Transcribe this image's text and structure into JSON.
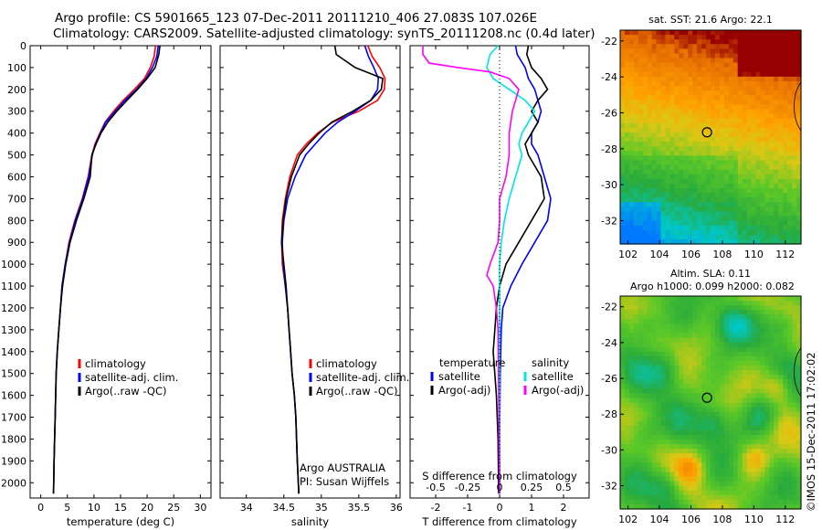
{
  "title_line1": "Argo profile: CS 5901665_123 07-Dec-2011 20111210_406 27.083S 107.026E",
  "title_line2": "Climatology: CARS2009. Satellite-adjusted climatology: synTS_20111208.nc (0.4d later)",
  "stamp": "©IMOS 15-Dec-2011 17:02:02",
  "colors": {
    "climatology": "#ff0000",
    "satellite": "#0000ff",
    "argo": "#000000",
    "cyan": "#00e5e5",
    "magenta": "#ff00ff"
  },
  "chart_data": [
    {
      "type": "line",
      "xlabel": "temperature (deg C)",
      "xlim": [
        -2,
        32
      ],
      "ylim": [
        2070,
        0
      ],
      "xticks": [
        0,
        5,
        10,
        15,
        20,
        25,
        30
      ],
      "yticks": [
        0,
        100,
        200,
        300,
        400,
        500,
        600,
        700,
        800,
        900,
        1000,
        1100,
        1200,
        1300,
        1400,
        1500,
        1600,
        1700,
        1800,
        1900,
        2000
      ],
      "legend": [
        "climatology",
        "satellite-adj. clim.",
        "Argo(..raw -QC)"
      ],
      "series": [
        {
          "name": "climatology",
          "color": "#ff0000",
          "x": [
            21.6,
            21.3,
            20.6,
            19.5,
            17.6,
            15.5,
            13.7,
            12.1,
            11.1,
            10.2,
            9.6,
            8.9,
            7.8,
            6.4,
            5.3,
            4.6,
            4.0,
            3.7,
            3.4,
            3.1,
            2.9,
            2.7,
            2.5,
            2.4
          ],
          "y": [
            0,
            50,
            100,
            150,
            200,
            250,
            300,
            350,
            400,
            450,
            500,
            600,
            700,
            800,
            900,
            1000,
            1100,
            1200,
            1300,
            1400,
            1500,
            1700,
            1900,
            2050
          ]
        },
        {
          "name": "satellite-adj. clim.",
          "color": "#0000ff",
          "x": [
            22.1,
            21.8,
            21.0,
            19.8,
            18.0,
            15.8,
            14.0,
            12.2,
            11.2,
            10.3,
            9.7,
            9.0,
            7.9,
            6.5,
            5.4,
            4.6,
            4.0,
            3.7,
            3.4,
            3.1,
            2.9,
            2.7,
            2.5,
            2.4
          ],
          "y": [
            0,
            50,
            100,
            150,
            200,
            250,
            300,
            350,
            400,
            450,
            500,
            600,
            700,
            800,
            900,
            1000,
            1100,
            1200,
            1300,
            1400,
            1500,
            1700,
            1900,
            2050
          ]
        },
        {
          "name": "Argo(..raw -QC)",
          "color": "#000000",
          "x": [
            22.4,
            22.2,
            21.5,
            20.0,
            18.2,
            16.2,
            14.3,
            12.6,
            11.3,
            10.4,
            9.6,
            9.3,
            8.1,
            6.7,
            5.5,
            4.7,
            4.1,
            3.7,
            3.4,
            3.1,
            2.9,
            2.7,
            2.5,
            2.4
          ],
          "y": [
            0,
            40,
            100,
            150,
            200,
            250,
            300,
            350,
            400,
            450,
            500,
            600,
            700,
            800,
            900,
            1000,
            1100,
            1200,
            1300,
            1400,
            1500,
            1700,
            1900,
            2050
          ]
        }
      ]
    },
    {
      "type": "line",
      "xlabel": "salinity",
      "xlim": [
        33.65,
        36.05
      ],
      "ylim": [
        2070,
        0
      ],
      "xticks": [
        34,
        34.5,
        35,
        35.5,
        36
      ],
      "legend": [
        "climatology",
        "satellite-adj. clim.",
        "Argo(..raw -QC)"
      ],
      "annotation": [
        "Argo AUSTRALIA",
        "PI: Susan Wijffels"
      ],
      "series": [
        {
          "name": "climatology",
          "color": "#ff0000",
          "x": [
            35.62,
            35.68,
            35.78,
            35.85,
            35.84,
            35.75,
            35.5,
            35.15,
            34.95,
            34.8,
            34.68,
            34.58,
            34.52,
            34.48,
            34.47,
            34.48,
            34.52,
            34.55,
            34.57,
            34.59,
            34.61,
            34.64,
            34.66,
            34.68,
            34.7
          ],
          "y": [
            0,
            50,
            100,
            150,
            200,
            250,
            300,
            350,
            400,
            450,
            500,
            600,
            700,
            800,
            900,
            1000,
            1100,
            1200,
            1300,
            1400,
            1500,
            1600,
            1700,
            1900,
            2050
          ]
        },
        {
          "name": "satellite-adj. clim.",
          "color": "#0000ff",
          "x": [
            35.58,
            35.63,
            35.7,
            35.76,
            35.75,
            35.66,
            35.45,
            35.22,
            35.05,
            34.92,
            34.79,
            34.65,
            34.55,
            34.5,
            34.48,
            34.49,
            34.52,
            34.55,
            34.57,
            34.59,
            34.61,
            34.64,
            34.66,
            34.68,
            34.7
          ],
          "y": [
            0,
            50,
            100,
            150,
            200,
            250,
            300,
            350,
            400,
            450,
            500,
            600,
            700,
            800,
            900,
            1000,
            1100,
            1200,
            1300,
            1400,
            1500,
            1600,
            1700,
            1900,
            2050
          ]
        },
        {
          "name": "Argo(..raw -QC)",
          "color": "#000000",
          "x": [
            35.18,
            35.2,
            35.45,
            35.82,
            35.8,
            35.66,
            35.42,
            35.14,
            34.97,
            34.83,
            34.71,
            34.6,
            34.53,
            34.49,
            34.47,
            34.5,
            34.53,
            34.55,
            34.57,
            34.59,
            34.61,
            34.64,
            34.66,
            34.68,
            34.7
          ],
          "y": [
            0,
            40,
            100,
            150,
            200,
            250,
            300,
            350,
            400,
            450,
            500,
            600,
            700,
            800,
            900,
            1000,
            1100,
            1200,
            1300,
            1400,
            1500,
            1600,
            1700,
            1900,
            2050
          ]
        }
      ]
    },
    {
      "type": "line",
      "xlabel": "T difference from climatology",
      "xlabel_top": "S difference from climatology",
      "xlim": [
        -2.8,
        2.8
      ],
      "ylim": [
        2070,
        0
      ],
      "xticks": [
        -2,
        -1,
        0,
        1,
        2
      ],
      "xtick_labels": [
        "-2",
        "-1",
        "0",
        "1",
        "2"
      ],
      "xticks_s": [
        -2,
        -1,
        0,
        1,
        2
      ],
      "xtick_labels_s": [
        "-0.5",
        "-0.25",
        "0",
        "0.25",
        "0.5"
      ],
      "legend_titles": [
        "temperature",
        "salinity"
      ],
      "legend": [
        "satellite",
        "Argo(-adj)",
        "satellite",
        "Argo(-adj)"
      ],
      "series": [
        {
          "name": "T satellite",
          "color": "#0000ff",
          "x": [
            0.5,
            0.55,
            0.8,
            0.9,
            1.1,
            1.2,
            1.3,
            1.2,
            1.0,
            1.0,
            1.2,
            1.3,
            1.4,
            1.6,
            1.5,
            1.1,
            0.7,
            0.35,
            0.1,
            0.05,
            0.02,
            0.0,
            0.0
          ],
          "y": [
            0,
            40,
            100,
            150,
            200,
            250,
            300,
            350,
            400,
            450,
            500,
            550,
            600,
            700,
            800,
            900,
            1000,
            1100,
            1200,
            1300,
            1500,
            1800,
            2050
          ]
        },
        {
          "name": "T Argo(-adj)",
          "color": "#000000",
          "x": [
            0.9,
            0.85,
            1.0,
            1.3,
            1.5,
            1.2,
            1.0,
            1.2,
            1.0,
            0.8,
            0.9,
            1.1,
            1.3,
            1.4,
            1.0,
            0.6,
            0.2,
            0.0,
            -0.1,
            -0.15,
            -0.2,
            -0.1,
            -0.05,
            -0.03
          ],
          "y": [
            0,
            40,
            100,
            150,
            200,
            250,
            300,
            350,
            400,
            450,
            500,
            550,
            600,
            700,
            800,
            900,
            1000,
            1100,
            1200,
            1300,
            1400,
            1600,
            1800,
            2050
          ]
        },
        {
          "name": "S satellite",
          "color": "#00e5e5",
          "x": [
            -0.05,
            -0.3,
            -0.4,
            -0.2,
            0.3,
            0.8,
            1.1,
            0.9,
            0.7,
            0.6,
            0.7,
            0.5,
            0.3,
            0.15,
            0.05,
            0.0,
            0.0,
            0.0
          ],
          "y": [
            0,
            40,
            100,
            150,
            200,
            250,
            300,
            350,
            400,
            450,
            500,
            600,
            700,
            800,
            900,
            1000,
            1300,
            2050
          ]
        },
        {
          "name": "S Argo(-adj)",
          "color": "#ff00ff",
          "x": [
            -2.4,
            -2.4,
            -2.2,
            -1.3,
            -0.3,
            0.3,
            0.6,
            0.5,
            0.4,
            0.3,
            0.3,
            0.2,
            0.0,
            0.0,
            -0.05,
            -0.3,
            -0.4,
            -0.2,
            -0.1,
            -0.05,
            0.0
          ],
          "y": [
            0,
            40,
            80,
            100,
            120,
            150,
            200,
            250,
            300,
            400,
            500,
            600,
            700,
            800,
            900,
            1000,
            1050,
            1100,
            1200,
            1300,
            2050
          ]
        }
      ]
    },
    {
      "type": "heatmap",
      "title": "sat. SST: 21.6 Argo: 22.1",
      "xlim": [
        101.5,
        113
      ],
      "ylim": [
        -33.3,
        -21.4
      ],
      "xticks": [
        102,
        104,
        106,
        108,
        110,
        112
      ],
      "yticks": [
        -22,
        -24,
        -26,
        -28,
        -30,
        -32
      ],
      "marker": {
        "lon": 107.026,
        "lat": -27.083
      },
      "field": "sst"
    },
    {
      "type": "heatmap",
      "title": [
        "Altim. SLA: 0.11",
        "Argo h1000: 0.099 h2000: 0.082"
      ],
      "xlim": [
        101.5,
        113
      ],
      "ylim": [
        -33.3,
        -21.4
      ],
      "xticks": [
        102,
        104,
        106,
        108,
        110,
        112
      ],
      "yticks": [
        -22,
        -24,
        -26,
        -28,
        -30,
        -32
      ],
      "marker": {
        "lon": 107.026,
        "lat": -27.083
      },
      "field": "sla"
    }
  ]
}
